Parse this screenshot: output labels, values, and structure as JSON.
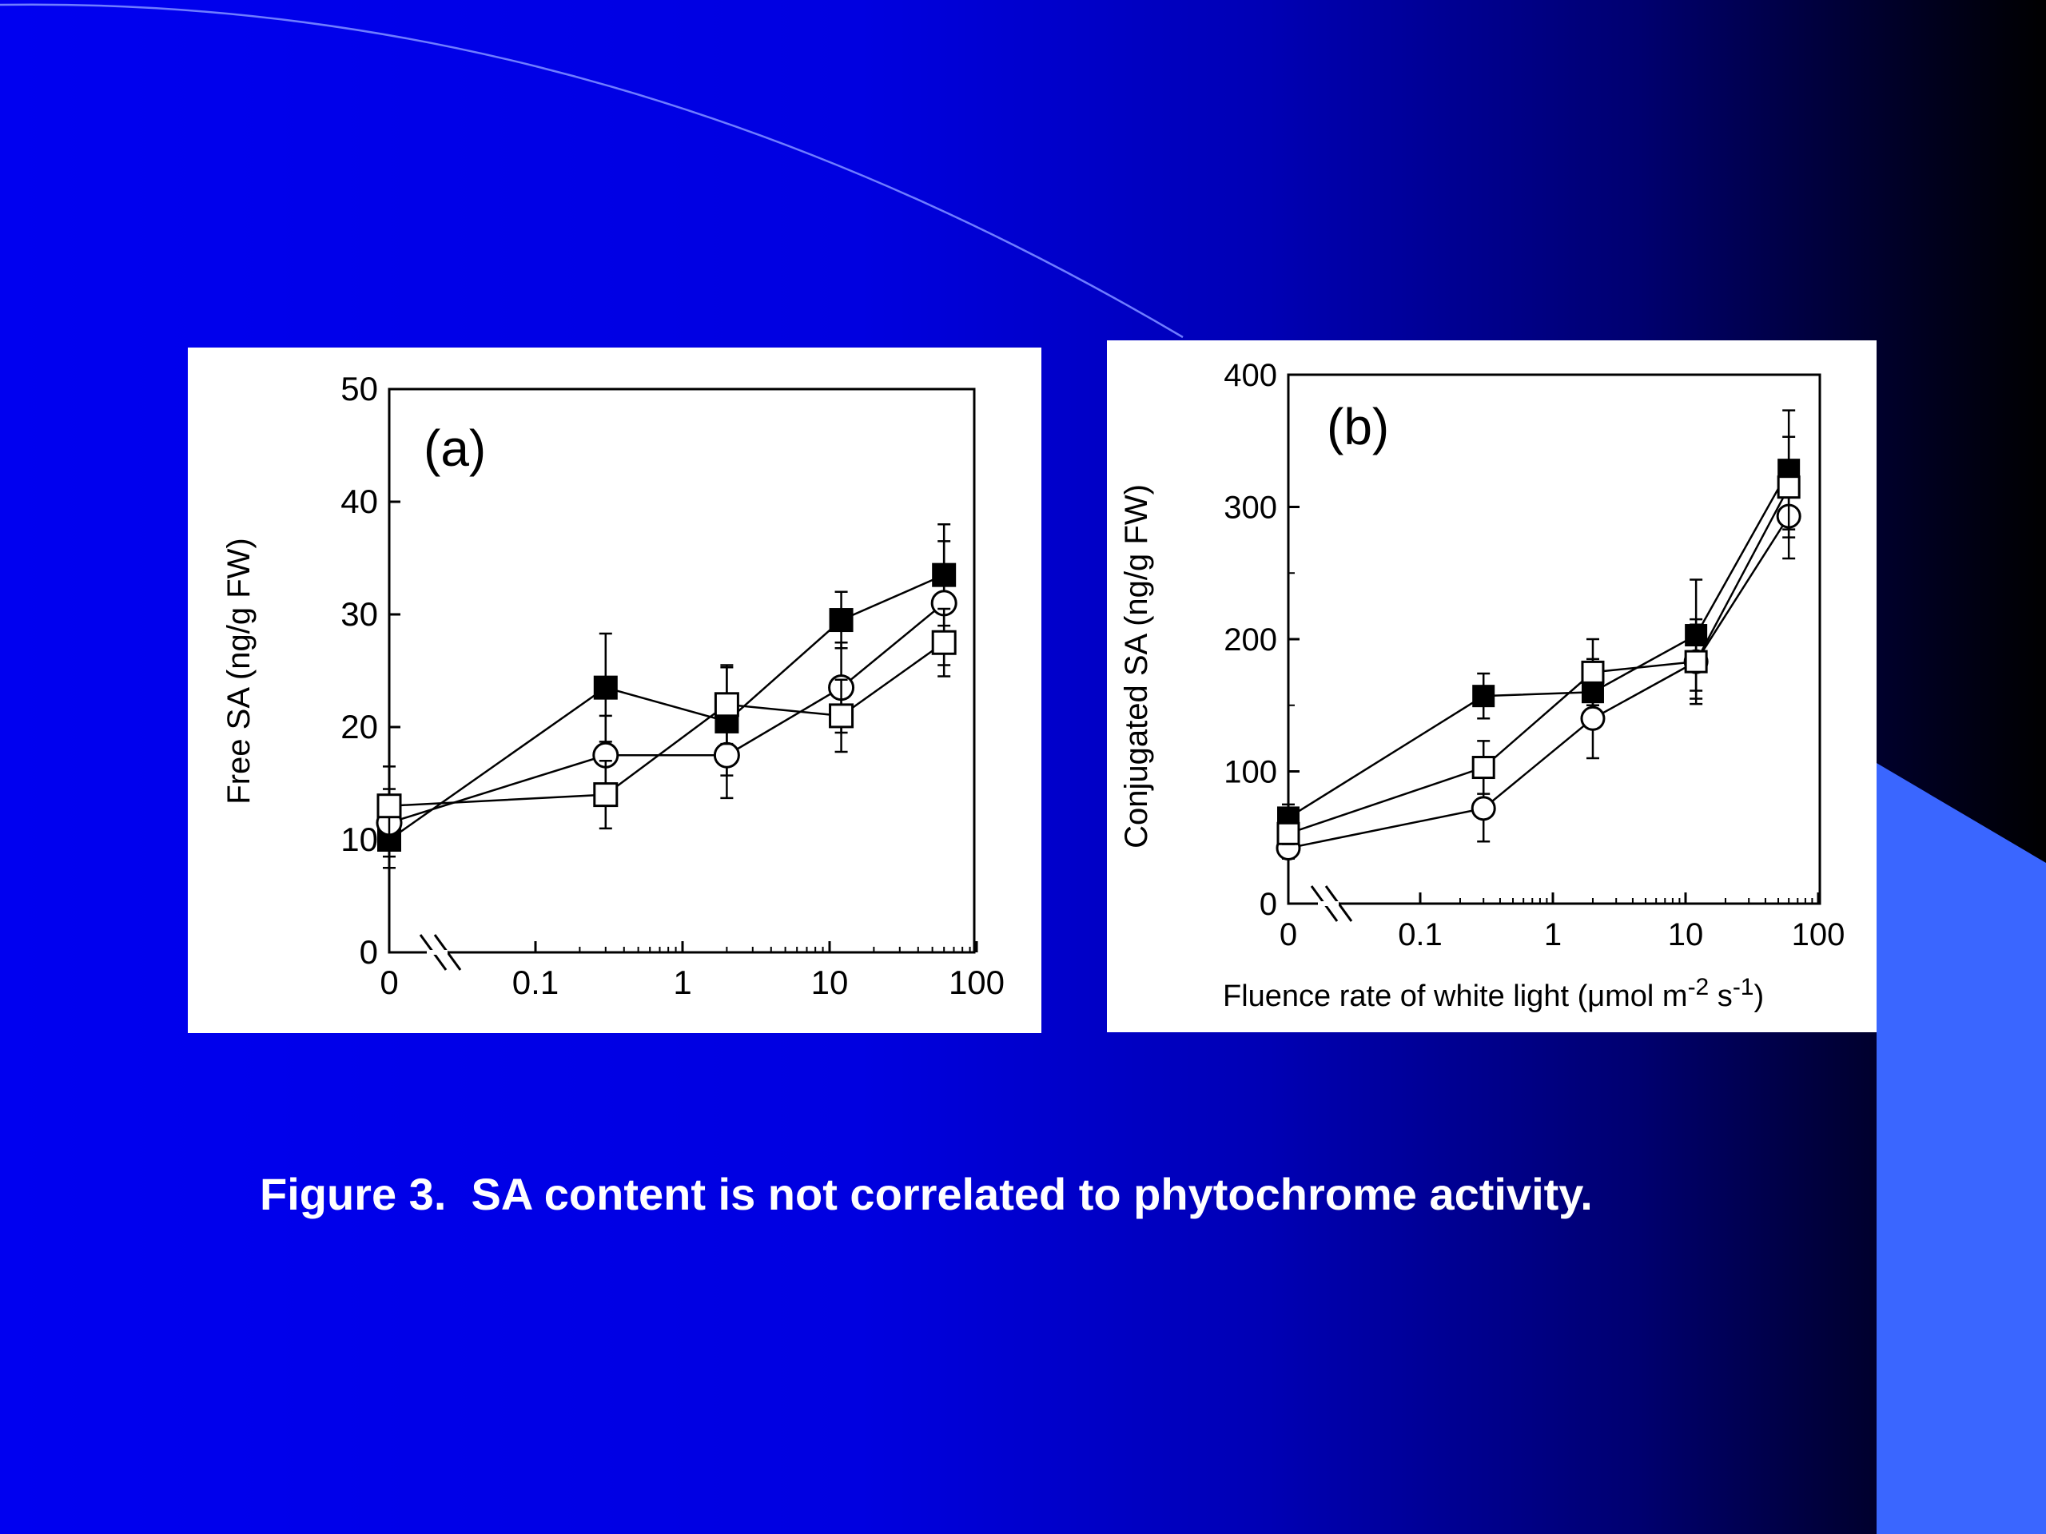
{
  "slide": {
    "caption": "Figure 3.  SA content is not correlated to phytochrome activity.",
    "colors": {
      "background_left": "#0000f0",
      "background_right": "#000000",
      "accent_shape": "#3a66ff",
      "arc_line": "#6f7dff",
      "panel": "#ffffff"
    }
  },
  "chart_data": [
    {
      "type": "line",
      "panel_label": "(a)",
      "title": "",
      "ylabel": "Free SA (ng/g FW)",
      "xlabel": "",
      "xscale": "log (with axis break after 0)",
      "x_tick_labels": [
        "0",
        "0.1",
        "1",
        "10",
        "100"
      ],
      "y_tick_labels": [
        "0",
        "10",
        "20",
        "30",
        "40",
        "50"
      ],
      "ylim": [
        0,
        50
      ],
      "x": [
        0,
        0.3,
        2,
        12,
        60
      ],
      "series": [
        {
          "marker": "filled-square",
          "values": [
            10,
            23.5,
            20.5,
            29.5,
            33.5
          ],
          "errors": [
            2.5,
            4.8,
            4.8,
            2.5,
            4.5
          ]
        },
        {
          "marker": "open-circle",
          "values": [
            11.5,
            17.5,
            17.5,
            23.5,
            31
          ],
          "errors": [
            3,
            3.5,
            3.8,
            4,
            5.5
          ]
        },
        {
          "marker": "open-square",
          "values": [
            13,
            14,
            22,
            21,
            27.5
          ],
          "errors": [
            3.5,
            3,
            3.5,
            3.2,
            3
          ]
        }
      ]
    },
    {
      "type": "line",
      "panel_label": "(b)",
      "title": "",
      "ylabel": "Conjugated SA (ng/g FW)",
      "xlabel": "Fluence rate of white light (μmol m-2 s-1)",
      "xscale": "log (with axis break after 0)",
      "x_tick_labels": [
        "0",
        "0.1",
        "1",
        "10",
        "100"
      ],
      "y_tick_labels": [
        "0",
        "100",
        "200",
        "300",
        "400"
      ],
      "ylim": [
        0,
        400
      ],
      "x": [
        0,
        0.3,
        2,
        12,
        60
      ],
      "series": [
        {
          "marker": "filled-square",
          "values": [
            65,
            157,
            160,
            203,
            328
          ],
          "errors": [
            10,
            17,
            25,
            42,
            45
          ]
        },
        {
          "marker": "open-circle",
          "values": [
            42,
            72,
            140,
            183,
            293
          ],
          "errors": [
            8,
            25,
            30,
            28,
            32
          ]
        },
        {
          "marker": "open-square",
          "values": [
            53,
            103,
            175,
            183,
            315
          ],
          "errors": [
            8,
            20,
            25,
            32,
            38
          ]
        }
      ]
    }
  ]
}
